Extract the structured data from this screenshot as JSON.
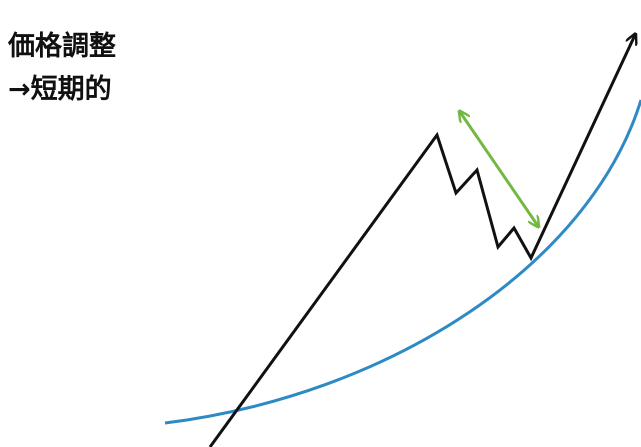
{
  "labels": {
    "line1": "価格調整",
    "line2": "→短期的"
  },
  "colors": {
    "price_line": "#111111",
    "trend_curve": "#2e8ac4",
    "swing_arrow": "#74b843"
  }
}
